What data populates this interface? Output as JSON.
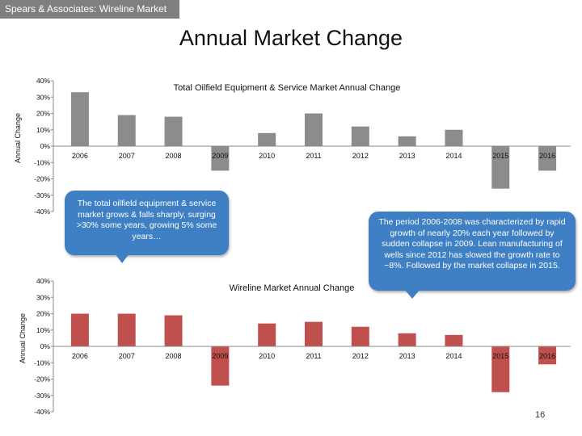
{
  "header": {
    "bar_text": "Spears & Associates:  Wireline Market"
  },
  "slide": {
    "title": "Annual Market Change",
    "page_number": "16"
  },
  "colors": {
    "oilfield_bar": "#8c8c8c",
    "wireline_bar": "#c0504d",
    "callout": "#3f7fc4",
    "header_bar": "#7f7f7f"
  },
  "callouts": {
    "oilfield": "The total oilfield equipment & service market grows & falls sharply, surging >30% some years, growing 5% some years…",
    "wireline": "The period 2006-2008 was characterized by rapid growth  of nearly 20% each year followed by sudden collapse in 2009. Lean manufacturing of wells since 2012 has slowed the growth rate to ~8%. Followed by the market collapse in 2015."
  },
  "chart_data": [
    {
      "type": "bar",
      "title": "Total Oilfield Equipment & Service Market Annual Change",
      "ylabel": "Annual Change",
      "xlabel": "",
      "ylim": [
        -40,
        40
      ],
      "y_ticks": [
        "40%",
        "30%",
        "20%",
        "10%",
        "0%",
        "-10%",
        "-20%",
        "-30%",
        "-40%"
      ],
      "categories": [
        "2006",
        "2007",
        "2008",
        "2009",
        "2010",
        "2011",
        "2012",
        "2013",
        "2014",
        "2015",
        "2016"
      ],
      "values": [
        33,
        19,
        18,
        -15,
        8,
        20,
        12,
        6,
        10,
        -26,
        -15
      ]
    },
    {
      "type": "bar",
      "title": "Wireline  Market Annual Change",
      "ylabel": "Annual Change",
      "xlabel": "",
      "ylim": [
        -40,
        40
      ],
      "y_ticks": [
        "40%",
        "30%",
        "20%",
        "10%",
        "0%",
        "-10%",
        "-20%",
        "-30%",
        "-40%"
      ],
      "categories": [
        "2006",
        "2007",
        "2008",
        "2009",
        "2010",
        "2011",
        "2012",
        "2013",
        "2014",
        "2015",
        "2016"
      ],
      "values": [
        20,
        20,
        19,
        -24,
        14,
        15,
        12,
        8,
        7,
        -28,
        -11
      ]
    }
  ]
}
